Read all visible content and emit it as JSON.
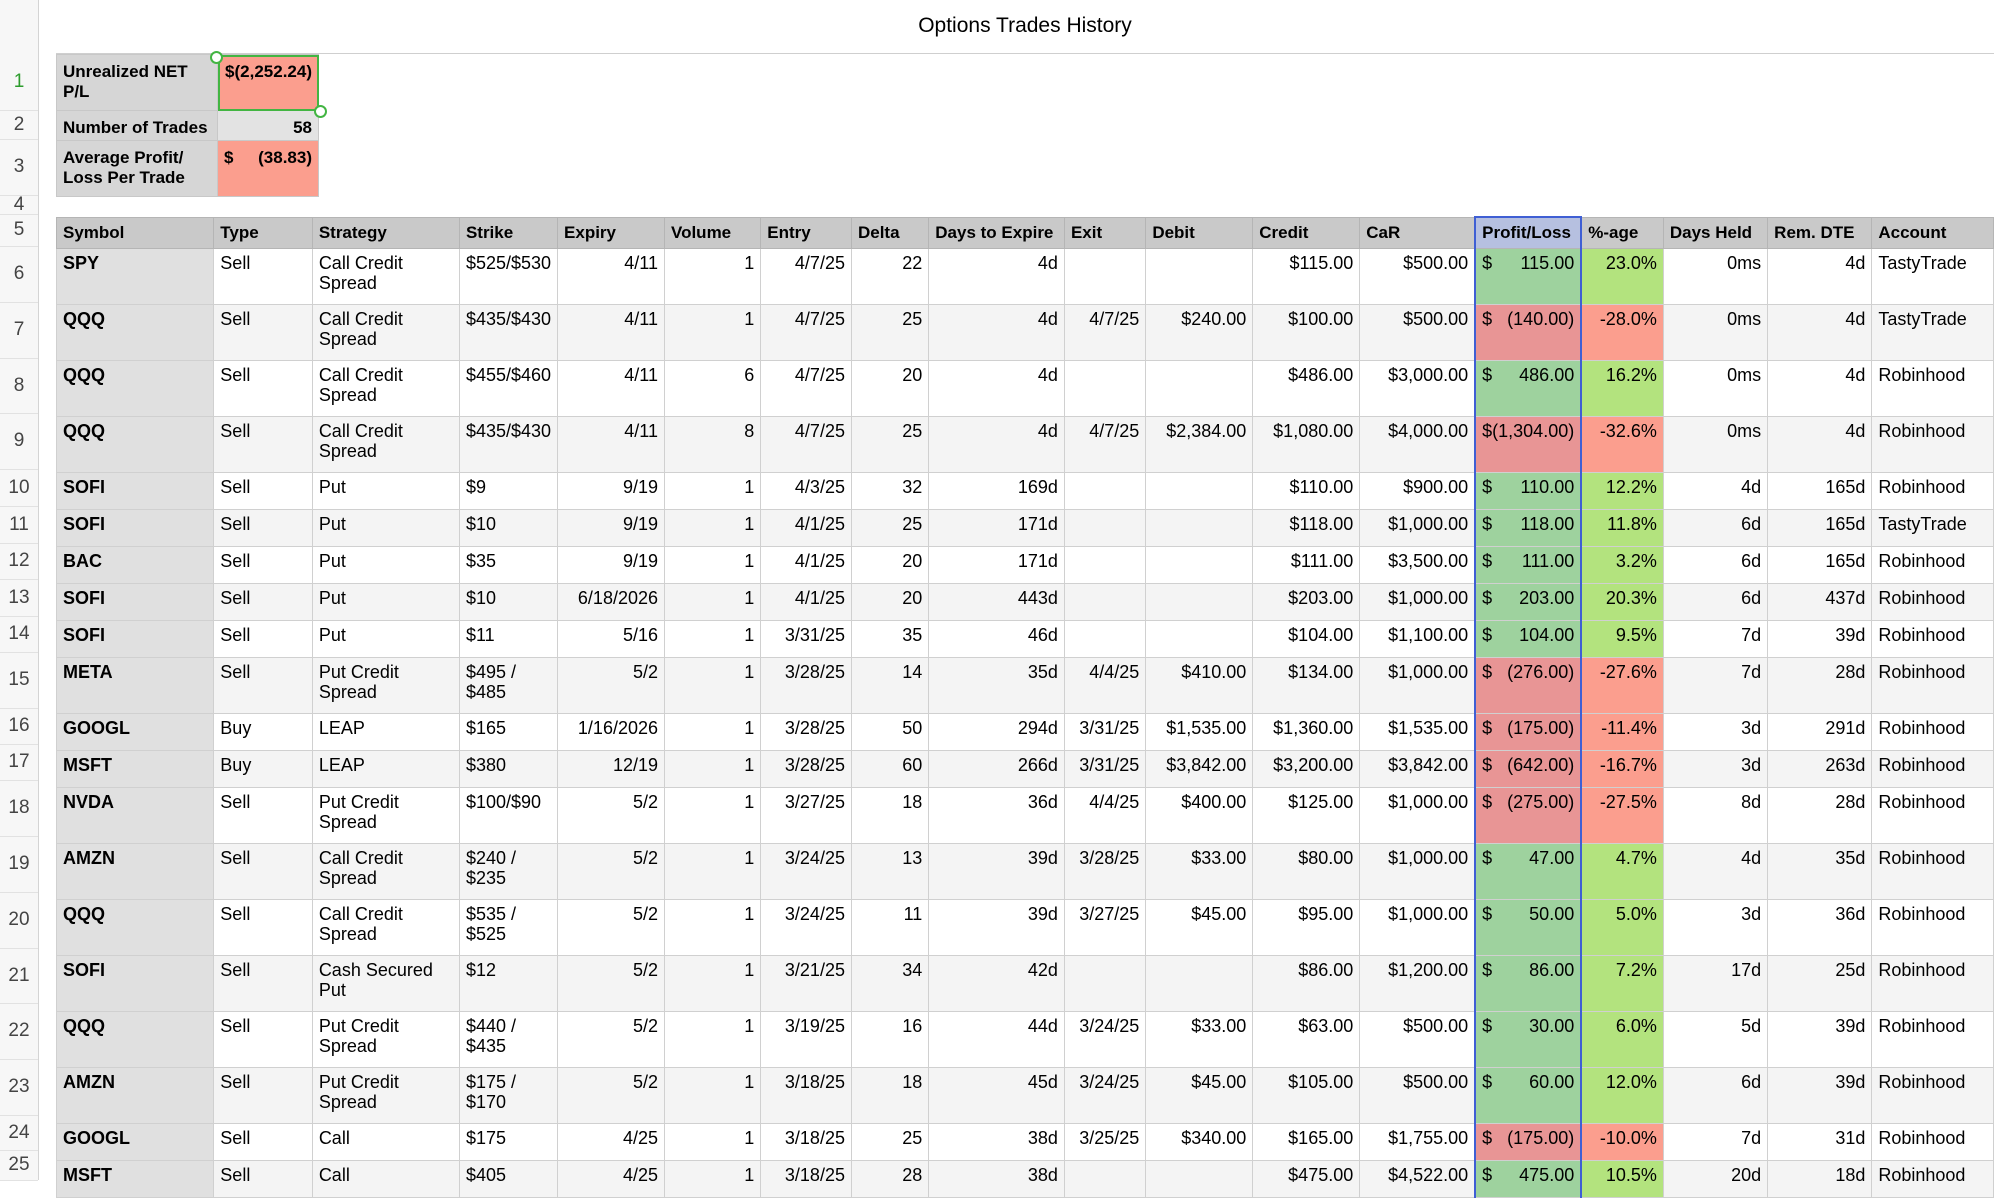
{
  "sheet_title": "Options Trades History",
  "row_numbers": [
    "1",
    "2",
    "3",
    "4",
    "5",
    "6",
    "7",
    "8",
    "9",
    "10",
    "11",
    "12",
    "13",
    "14",
    "15",
    "16",
    "17",
    "18",
    "19",
    "20",
    "21",
    "22",
    "23",
    "24",
    "25"
  ],
  "summary": [
    {
      "label": "Unrealized NET P/L",
      "value": "$(2,252.24)",
      "style": "pink"
    },
    {
      "label": "Number of Trades",
      "value": "58",
      "style": "gray"
    },
    {
      "label": "Average Profit/ Loss Per Trade",
      "value_prefix": "$",
      "value": "(38.83)",
      "style": "pink"
    }
  ],
  "headers": [
    "Symbol",
    "Type",
    "Strategy",
    "Strike",
    "Expiry",
    "Volume",
    "Entry",
    "Delta",
    "Days to Expire",
    "Exit",
    "Debit",
    "Credit",
    "CaR",
    "Profit/Loss",
    "%-age",
    "Days Held",
    "Rem. DTE",
    "Account"
  ],
  "rows": [
    {
      "symbol": "SPY",
      "type": "Sell",
      "strategy": "Call Credit Spread",
      "strike": "$525/$530",
      "expiry": "4/11",
      "volume": "1",
      "entry": "4/7/25",
      "delta": "22",
      "dte": "4d",
      "exit": "",
      "debit": "",
      "credit": "$115.00",
      "car": "$500.00",
      "pl": "115.00",
      "pl_neg": false,
      "pct": "23.0%",
      "pct_neg": false,
      "held": "0ms",
      "rem": "4d",
      "account": "TastyTrade",
      "h": 2
    },
    {
      "symbol": "QQQ",
      "type": "Sell",
      "strategy": "Call Credit Spread",
      "strike": "$435/$430",
      "expiry": "4/11",
      "volume": "1",
      "entry": "4/7/25",
      "delta": "25",
      "dte": "4d",
      "exit": "4/7/25",
      "debit": "$240.00",
      "credit": "$100.00",
      "car": "$500.00",
      "pl": "(140.00)",
      "pl_neg": true,
      "pct": "-28.0%",
      "pct_neg": true,
      "held": "0ms",
      "rem": "4d",
      "account": "TastyTrade",
      "h": 2
    },
    {
      "symbol": "QQQ",
      "type": "Sell",
      "strategy": "Call Credit Spread",
      "strike": "$455/$460",
      "expiry": "4/11",
      "volume": "6",
      "entry": "4/7/25",
      "delta": "20",
      "dte": "4d",
      "exit": "",
      "debit": "",
      "credit": "$486.00",
      "car": "$3,000.00",
      "pl": "486.00",
      "pl_neg": false,
      "pct": "16.2%",
      "pct_neg": false,
      "held": "0ms",
      "rem": "4d",
      "account": "Robinhood",
      "h": 2
    },
    {
      "symbol": "QQQ",
      "type": "Sell",
      "strategy": "Call Credit Spread",
      "strike": "$435/$430",
      "expiry": "4/11",
      "volume": "8",
      "entry": "4/7/25",
      "delta": "25",
      "dte": "4d",
      "exit": "4/7/25",
      "debit": "$2,384.00",
      "credit": "$1,080.00",
      "car": "$4,000.00",
      "pl": "(1,304.00)",
      "pl_neg": true,
      "pct": "-32.6%",
      "pct_neg": true,
      "held": "0ms",
      "rem": "4d",
      "account": "Robinhood",
      "h": 2
    },
    {
      "symbol": "SOFI",
      "type": "Sell",
      "strategy": "Put",
      "strike": "$9",
      "expiry": "9/19",
      "volume": "1",
      "entry": "4/3/25",
      "delta": "32",
      "dte": "169d",
      "exit": "",
      "debit": "",
      "credit": "$110.00",
      "car": "$900.00",
      "pl": "110.00",
      "pl_neg": false,
      "pct": "12.2%",
      "pct_neg": false,
      "held": "4d",
      "rem": "165d",
      "account": "Robinhood",
      "h": 1
    },
    {
      "symbol": "SOFI",
      "type": "Sell",
      "strategy": "Put",
      "strike": "$10",
      "expiry": "9/19",
      "volume": "1",
      "entry": "4/1/25",
      "delta": "25",
      "dte": "171d",
      "exit": "",
      "debit": "",
      "credit": "$118.00",
      "car": "$1,000.00",
      "pl": "118.00",
      "pl_neg": false,
      "pct": "11.8%",
      "pct_neg": false,
      "held": "6d",
      "rem": "165d",
      "account": "TastyTrade",
      "h": 1
    },
    {
      "symbol": "BAC",
      "type": "Sell",
      "strategy": "Put",
      "strike": "$35",
      "expiry": "9/19",
      "volume": "1",
      "entry": "4/1/25",
      "delta": "20",
      "dte": "171d",
      "exit": "",
      "debit": "",
      "credit": "$111.00",
      "car": "$3,500.00",
      "pl": "111.00",
      "pl_neg": false,
      "pct": "3.2%",
      "pct_neg": false,
      "held": "6d",
      "rem": "165d",
      "account": "Robinhood",
      "h": 1
    },
    {
      "symbol": "SOFI",
      "type": "Sell",
      "strategy": "Put",
      "strike": "$10",
      "expiry": "6/18/2026",
      "volume": "1",
      "entry": "4/1/25",
      "delta": "20",
      "dte": "443d",
      "exit": "",
      "debit": "",
      "credit": "$203.00",
      "car": "$1,000.00",
      "pl": "203.00",
      "pl_neg": false,
      "pct": "20.3%",
      "pct_neg": false,
      "held": "6d",
      "rem": "437d",
      "account": "Robinhood",
      "h": 1
    },
    {
      "symbol": "SOFI",
      "type": "Sell",
      "strategy": "Put",
      "strike": "$11",
      "expiry": "5/16",
      "volume": "1",
      "entry": "3/31/25",
      "delta": "35",
      "dte": "46d",
      "exit": "",
      "debit": "",
      "credit": "$104.00",
      "car": "$1,100.00",
      "pl": "104.00",
      "pl_neg": false,
      "pct": "9.5%",
      "pct_neg": false,
      "held": "7d",
      "rem": "39d",
      "account": "Robinhood",
      "h": 1
    },
    {
      "symbol": "META",
      "type": "Sell",
      "strategy": "Put Credit Spread",
      "strike": "$495 / $485",
      "expiry": "5/2",
      "volume": "1",
      "entry": "3/28/25",
      "delta": "14",
      "dte": "35d",
      "exit": "4/4/25",
      "debit": "$410.00",
      "credit": "$134.00",
      "car": "$1,000.00",
      "pl": "(276.00)",
      "pl_neg": true,
      "pct": "-27.6%",
      "pct_neg": true,
      "held": "7d",
      "rem": "28d",
      "account": "Robinhood",
      "h": 2
    },
    {
      "symbol": "GOOGL",
      "type": "Buy",
      "strategy": "LEAP",
      "strike": "$165",
      "expiry": "1/16/2026",
      "volume": "1",
      "entry": "3/28/25",
      "delta": "50",
      "dte": "294d",
      "exit": "3/31/25",
      "debit": "$1,535.00",
      "credit": "$1,360.00",
      "car": "$1,535.00",
      "pl": "(175.00)",
      "pl_neg": true,
      "pct": "-11.4%",
      "pct_neg": true,
      "held": "3d",
      "rem": "291d",
      "account": "Robinhood",
      "h": 1
    },
    {
      "symbol": "MSFT",
      "type": "Buy",
      "strategy": "LEAP",
      "strike": "$380",
      "expiry": "12/19",
      "volume": "1",
      "entry": "3/28/25",
      "delta": "60",
      "dte": "266d",
      "exit": "3/31/25",
      "debit": "$3,842.00",
      "credit": "$3,200.00",
      "car": "$3,842.00",
      "pl": "(642.00)",
      "pl_neg": true,
      "pct": "-16.7%",
      "pct_neg": true,
      "held": "3d",
      "rem": "263d",
      "account": "Robinhood",
      "h": 1
    },
    {
      "symbol": "NVDA",
      "type": "Sell",
      "strategy": "Put Credit Spread",
      "strike": "$100/$90",
      "expiry": "5/2",
      "volume": "1",
      "entry": "3/27/25",
      "delta": "18",
      "dte": "36d",
      "exit": "4/4/25",
      "debit": "$400.00",
      "credit": "$125.00",
      "car": "$1,000.00",
      "pl": "(275.00)",
      "pl_neg": true,
      "pct": "-27.5%",
      "pct_neg": true,
      "held": "8d",
      "rem": "28d",
      "account": "Robinhood",
      "h": 2
    },
    {
      "symbol": "AMZN",
      "type": "Sell",
      "strategy": "Call Credit Spread",
      "strike": "$240 / $235",
      "expiry": "5/2",
      "volume": "1",
      "entry": "3/24/25",
      "delta": "13",
      "dte": "39d",
      "exit": "3/28/25",
      "debit": "$33.00",
      "credit": "$80.00",
      "car": "$1,000.00",
      "pl": "47.00",
      "pl_neg": false,
      "pct": "4.7%",
      "pct_neg": false,
      "held": "4d",
      "rem": "35d",
      "account": "Robinhood",
      "h": 2
    },
    {
      "symbol": "QQQ",
      "type": "Sell",
      "strategy": "Call Credit Spread",
      "strike": "$535 / $525",
      "expiry": "5/2",
      "volume": "1",
      "entry": "3/24/25",
      "delta": "11",
      "dte": "39d",
      "exit": "3/27/25",
      "debit": "$45.00",
      "credit": "$95.00",
      "car": "$1,000.00",
      "pl": "50.00",
      "pl_neg": false,
      "pct": "5.0%",
      "pct_neg": false,
      "held": "3d",
      "rem": "36d",
      "account": "Robinhood",
      "h": 2
    },
    {
      "symbol": "SOFI",
      "type": "Sell",
      "strategy": "Cash Secured Put",
      "strike": "$12",
      "expiry": "5/2",
      "volume": "1",
      "entry": "3/21/25",
      "delta": "34",
      "dte": "42d",
      "exit": "",
      "debit": "",
      "credit": "$86.00",
      "car": "$1,200.00",
      "pl": "86.00",
      "pl_neg": false,
      "pct": "7.2%",
      "pct_neg": false,
      "held": "17d",
      "rem": "25d",
      "account": "Robinhood",
      "h": 2
    },
    {
      "symbol": "QQQ",
      "type": "Sell",
      "strategy": "Put Credit Spread",
      "strike": "$440 / $435",
      "expiry": "5/2",
      "volume": "1",
      "entry": "3/19/25",
      "delta": "16",
      "dte": "44d",
      "exit": "3/24/25",
      "debit": "$33.00",
      "credit": "$63.00",
      "car": "$500.00",
      "pl": "30.00",
      "pl_neg": false,
      "pct": "6.0%",
      "pct_neg": false,
      "held": "5d",
      "rem": "39d",
      "account": "Robinhood",
      "h": 2
    },
    {
      "symbol": "AMZN",
      "type": "Sell",
      "strategy": "Put Credit Spread",
      "strike": "$175 / $170",
      "expiry": "5/2",
      "volume": "1",
      "entry": "3/18/25",
      "delta": "18",
      "dte": "45d",
      "exit": "3/24/25",
      "debit": "$45.00",
      "credit": "$105.00",
      "car": "$500.00",
      "pl": "60.00",
      "pl_neg": false,
      "pct": "12.0%",
      "pct_neg": false,
      "held": "6d",
      "rem": "39d",
      "account": "Robinhood",
      "h": 2
    },
    {
      "symbol": "GOOGL",
      "type": "Sell",
      "strategy": "Call",
      "strike": "$175",
      "expiry": "4/25",
      "volume": "1",
      "entry": "3/18/25",
      "delta": "25",
      "dte": "38d",
      "exit": "3/25/25",
      "debit": "$340.00",
      "credit": "$165.00",
      "car": "$1,755.00",
      "pl": "(175.00)",
      "pl_neg": true,
      "pct": "-10.0%",
      "pct_neg": true,
      "held": "7d",
      "rem": "31d",
      "account": "Robinhood",
      "h": 1
    },
    {
      "symbol": "MSFT",
      "type": "Sell",
      "strategy": "Call",
      "strike": "$405",
      "expiry": "4/25",
      "volume": "1",
      "entry": "3/18/25",
      "delta": "28",
      "dte": "38d",
      "exit": "",
      "debit": "",
      "credit": "$475.00",
      "car": "$4,522.00",
      "pl": "475.00",
      "pl_neg": false,
      "pct": "10.5%",
      "pct_neg": false,
      "held": "20d",
      "rem": "18d",
      "account": "Robinhood",
      "h": 1
    }
  ],
  "colors": {
    "loss_cell": "#e89595",
    "gain_cell": "#9ed29e",
    "pct_gain": "#b3e37e",
    "pct_loss": "#fb9e8e",
    "selection": "#43b543",
    "column_highlight": "#3f5fd4"
  }
}
